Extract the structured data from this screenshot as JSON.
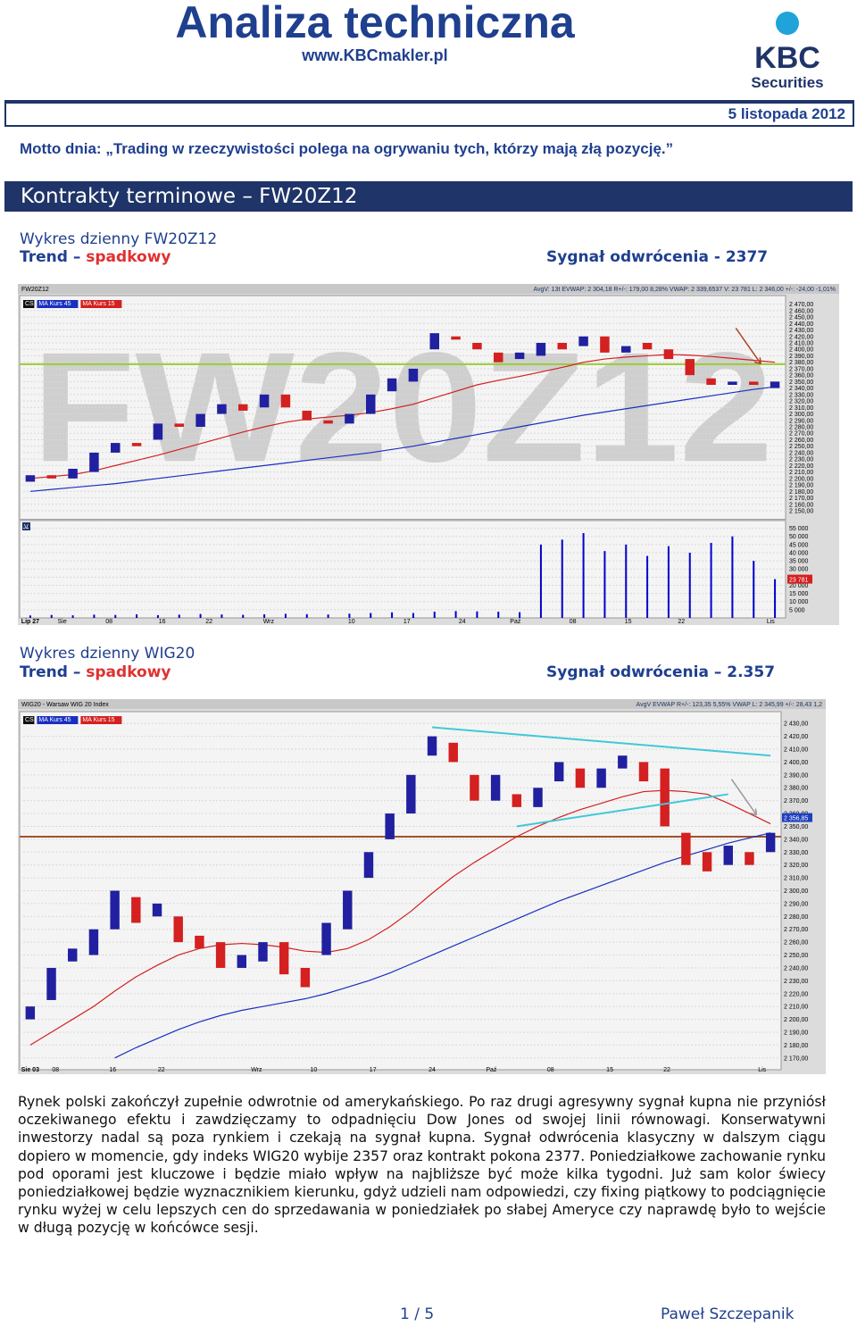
{
  "header": {
    "title": "Analiza techniczna",
    "url": "www.KBCmakler.pl",
    "logo": "KBC",
    "logo_sub": "Securities",
    "date": "5 listopada 2012"
  },
  "motto": {
    "label": "Motto dnia:",
    "text": "„Trading w rzeczywistości polega na ogrywaniu tych, którzy mają złą pozycję.”"
  },
  "section_title": "Kontrakty terminowe – FW20Z12",
  "captions": [
    {
      "title": "Wykres dzienny FW20Z12",
      "trend_label": "Trend –",
      "trend": "spadkowy",
      "signal": "Sygnał odwrócenia - 2377"
    },
    {
      "title": "Wykres dzienny WIG20",
      "trend_label": "Trend –",
      "trend": "spadkowy",
      "signal": "Sygnał odwrócenia – 2.357"
    }
  ],
  "chart_data": [
    {
      "type": "candlestick",
      "symbol": "FW20Z12",
      "watermark": "FW20Z12",
      "info": "AvgV: 13t  EVWAP: 2 304,18  R+/-: 179,00  8,28%  VWAP: 2 339,6537  V: 23 781  L: 2 346,00  +/-: -24,00  -1,01%",
      "candle_label": "CS",
      "ylim": [
        2145,
        2475
      ],
      "yticks": [
        {
          "value": 2470,
          "label": "2 470,00"
        },
        {
          "value": 2460,
          "label": "2 460,00"
        },
        {
          "value": 2450,
          "label": "2 450,00"
        },
        {
          "value": 2440,
          "label": "2 440,00"
        },
        {
          "value": 2430,
          "label": "2 430,00"
        },
        {
          "value": 2420,
          "label": "2 420,00"
        },
        {
          "value": 2410,
          "label": "2 410,00"
        },
        {
          "value": 2400,
          "label": "2 400,00"
        },
        {
          "value": 2390,
          "label": "2 390,00"
        },
        {
          "value": 2380,
          "label": "2 380,00"
        },
        {
          "value": 2370,
          "label": "2 370,00"
        },
        {
          "value": 2360,
          "label": "2 360,00"
        },
        {
          "value": 2350,
          "label": "2 350,00"
        },
        {
          "value": 2340,
          "label": "2 340,00"
        },
        {
          "value": 2330,
          "label": "2 330,00"
        },
        {
          "value": 2320,
          "label": "2 320,00"
        },
        {
          "value": 2310,
          "label": "2 310,00"
        },
        {
          "value": 2300,
          "label": "2 300,00"
        },
        {
          "value": 2290,
          "label": "2 290,00"
        },
        {
          "value": 2280,
          "label": "2 280,00"
        },
        {
          "value": 2270,
          "label": "2 270,00"
        },
        {
          "value": 2260,
          "label": "2 260,00"
        },
        {
          "value": 2250,
          "label": "2 250,00"
        },
        {
          "value": 2240,
          "label": "2 240,00"
        },
        {
          "value": 2230,
          "label": "2 230,00"
        },
        {
          "value": 2220,
          "label": "2 220,00"
        },
        {
          "value": 2210,
          "label": "2 210,00"
        },
        {
          "value": 2200,
          "label": "2 200,00"
        },
        {
          "value": 2190,
          "label": "2 190,00"
        },
        {
          "value": 2180,
          "label": "2 180,00"
        },
        {
          "value": 2170,
          "label": "2 170,00"
        },
        {
          "value": 2160,
          "label": "2 160,00"
        },
        {
          "value": 2150,
          "label": "2 150,00"
        }
      ],
      "xticks": [
        {
          "value": 0,
          "label": "Lip 27"
        },
        {
          "value": 1.5,
          "label": "Sie"
        },
        {
          "value": 3.7,
          "label": "08"
        },
        {
          "value": 6.2,
          "label": "16"
        },
        {
          "value": 8.4,
          "label": "22"
        },
        {
          "value": 11.2,
          "label": "Wrz"
        },
        {
          "value": 15.1,
          "label": "10"
        },
        {
          "value": 17.7,
          "label": "17"
        },
        {
          "value": 20.3,
          "label": "24"
        },
        {
          "value": 22.8,
          "label": "Paź"
        },
        {
          "value": 25.5,
          "label": "08"
        },
        {
          "value": 28.1,
          "label": "15"
        },
        {
          "value": 30.6,
          "label": "22"
        },
        {
          "value": 34.8,
          "label": "Lis"
        }
      ],
      "open": [
        2195,
        2205,
        2200,
        2210,
        2240,
        2255,
        2260,
        2285,
        2280,
        2300,
        2315,
        2310,
        2330,
        2305,
        2290,
        2285,
        2300,
        2335,
        2350,
        2400,
        2420,
        2410,
        2395,
        2385,
        2390,
        2410,
        2405,
        2420,
        2395,
        2410,
        2400,
        2385,
        2355,
        2345,
        2350,
        2340
      ],
      "close": [
        2205,
        2200,
        2215,
        2240,
        2255,
        2250,
        2285,
        2280,
        2300,
        2315,
        2305,
        2330,
        2310,
        2290,
        2285,
        2300,
        2330,
        2355,
        2370,
        2425,
        2415,
        2400,
        2380,
        2395,
        2410,
        2400,
        2420,
        2395,
        2405,
        2400,
        2385,
        2360,
        2345,
        2350,
        2345,
        2350
      ],
      "up_color": "#2020a0",
      "down_color": "#d42020",
      "ma": [
        {
          "name": "MA Kurs 45",
          "color": "#1a2fc0",
          "values": [
            2180,
            2183,
            2186,
            2189,
            2192,
            2196,
            2200,
            2204,
            2208,
            2212,
            2216,
            2220,
            2224,
            2228,
            2232,
            2236,
            2240,
            2245,
            2250,
            2256,
            2262,
            2268,
            2274,
            2280,
            2286,
            2292,
            2298,
            2303,
            2308,
            2313,
            2318,
            2323,
            2328,
            2333,
            2338,
            2342
          ]
        },
        {
          "name": "MA Kurs 15",
          "color": "#d42020",
          "values": [
            2200,
            2203,
            2206,
            2212,
            2220,
            2228,
            2236,
            2245,
            2254,
            2263,
            2272,
            2280,
            2287,
            2292,
            2295,
            2298,
            2302,
            2308,
            2315,
            2325,
            2335,
            2345,
            2352,
            2358,
            2365,
            2372,
            2380,
            2385,
            2388,
            2390,
            2392,
            2391,
            2389,
            2386,
            2383,
            2380
          ]
        }
      ],
      "hline": {
        "value": 2377,
        "color": "#9acd32"
      },
      "volume": {
        "label": "V",
        "color": "#0000cc",
        "ylim": [
          0,
          57500
        ],
        "yticks": [
          {
            "value": 55000,
            "label": "55 000"
          },
          {
            "value": 50000,
            "label": "50 000"
          },
          {
            "value": 45000,
            "label": "45 000"
          },
          {
            "value": 40000,
            "label": "40 000"
          },
          {
            "value": 35000,
            "label": "35 000"
          },
          {
            "value": 30000,
            "label": "30 000"
          },
          {
            "value": 25000,
            "label": "25 000"
          },
          {
            "value": 20000,
            "label": "20 000"
          },
          {
            "value": 15000,
            "label": "15 000"
          },
          {
            "value": 10000,
            "label": "10 000"
          },
          {
            "value": 5000,
            "label": "5 000"
          }
        ],
        "values": [
          1500,
          1800,
          1600,
          2000,
          1800,
          2200,
          1700,
          2000,
          2400,
          2100,
          1900,
          2200,
          2500,
          2300,
          2100,
          2600,
          3000,
          3400,
          3000,
          3800,
          4200,
          4000,
          3800,
          3500,
          45000,
          48000,
          52000,
          41000,
          45000,
          38000,
          44000,
          40000,
          46000,
          50000,
          35000,
          23781
        ],
        "last_label": {
          "value": 23781,
          "label": "23 781"
        }
      }
    },
    {
      "type": "candlestick",
      "symbol": "WIG20 - Warsaw WIG 20 Index",
      "info": "AvgV  EVWAP  R+/-: 123,35  5,55%  VWAP  L: 2 345,99  +/-: 28,43  1,2",
      "candle_label": "CS",
      "ylim": [
        2165,
        2435
      ],
      "yticks": [
        {
          "value": 2430,
          "label": "2 430,00"
        },
        {
          "value": 2420,
          "label": "2 420,00"
        },
        {
          "value": 2410,
          "label": "2 410,00"
        },
        {
          "value": 2400,
          "label": "2 400,00"
        },
        {
          "value": 2390,
          "label": "2 390,00"
        },
        {
          "value": 2380,
          "label": "2 380,00"
        },
        {
          "value": 2370,
          "label": "2 370,00"
        },
        {
          "value": 2360,
          "label": "2 360,00"
        },
        {
          "value": 2350,
          "label": "2 350,00"
        },
        {
          "value": 2340,
          "label": "2 340,00"
        },
        {
          "value": 2330,
          "label": "2 330,00"
        },
        {
          "value": 2320,
          "label": "2 320,00"
        },
        {
          "value": 2310,
          "label": "2 310,00"
        },
        {
          "value": 2300,
          "label": "2 300,00"
        },
        {
          "value": 2290,
          "label": "2 290,00"
        },
        {
          "value": 2280,
          "label": "2 280,00"
        },
        {
          "value": 2270,
          "label": "2 270,00"
        },
        {
          "value": 2260,
          "label": "2 260,00"
        },
        {
          "value": 2250,
          "label": "2 250,00"
        },
        {
          "value": 2240,
          "label": "2 240,00"
        },
        {
          "value": 2230,
          "label": "2 230,00"
        },
        {
          "value": 2220,
          "label": "2 220,00"
        },
        {
          "value": 2210,
          "label": "2 210,00"
        },
        {
          "value": 2200,
          "label": "2 200,00"
        },
        {
          "value": 2190,
          "label": "2 190,00"
        },
        {
          "value": 2180,
          "label": "2 180,00"
        },
        {
          "value": 2170,
          "label": "2 170,00"
        }
      ],
      "xticks": [
        {
          "value": 0,
          "label": "Sie 03"
        },
        {
          "value": 1.2,
          "label": "08"
        },
        {
          "value": 3.9,
          "label": "16"
        },
        {
          "value": 6.2,
          "label": "22"
        },
        {
          "value": 10.7,
          "label": "Wrz"
        },
        {
          "value": 13.4,
          "label": "10"
        },
        {
          "value": 16.2,
          "label": "17"
        },
        {
          "value": 19,
          "label": "24"
        },
        {
          "value": 21.8,
          "label": "Paź"
        },
        {
          "value": 24.6,
          "label": "08"
        },
        {
          "value": 27.4,
          "label": "15"
        },
        {
          "value": 30.1,
          "label": "22"
        },
        {
          "value": 34.6,
          "label": "Lis"
        }
      ],
      "open": [
        2200,
        2215,
        2245,
        2250,
        2270,
        2295,
        2280,
        2280,
        2265,
        2260,
        2240,
        2245,
        2260,
        2240,
        2250,
        2270,
        2310,
        2340,
        2360,
        2405,
        2415,
        2390,
        2370,
        2375,
        2365,
        2385,
        2395,
        2380,
        2395,
        2400,
        2395,
        2345,
        2330,
        2320,
        2330,
        2330
      ],
      "close": [
        2210,
        2240,
        2255,
        2270,
        2300,
        2275,
        2290,
        2260,
        2255,
        2240,
        2250,
        2260,
        2235,
        2225,
        2275,
        2300,
        2330,
        2360,
        2390,
        2420,
        2400,
        2370,
        2390,
        2365,
        2380,
        2400,
        2380,
        2395,
        2405,
        2385,
        2350,
        2320,
        2315,
        2335,
        2320,
        2345
      ],
      "up_color": "#2020a0",
      "down_color": "#d42020",
      "ma": [
        {
          "name": "MA Kurs 45",
          "color": "#1a2fc0",
          "values": [
            null,
            null,
            null,
            null,
            2170,
            2178,
            2185,
            2192,
            2198,
            2203,
            2207,
            2210,
            2213,
            2216,
            2220,
            2225,
            2230,
            2236,
            2243,
            2250,
            2257,
            2264,
            2271,
            2278,
            2285,
            2292,
            2298,
            2304,
            2310,
            2316,
            2322,
            2327,
            2332,
            2337,
            2341,
            2345
          ]
        },
        {
          "name": "MA Kurs 15",
          "color": "#d42020",
          "values": [
            2180,
            2190,
            2200,
            2210,
            2222,
            2233,
            2242,
            2250,
            2255,
            2258,
            2259,
            2258,
            2256,
            2253,
            2252,
            2255,
            2262,
            2272,
            2284,
            2298,
            2311,
            2322,
            2332,
            2342,
            2350,
            2357,
            2363,
            2368,
            2373,
            2377,
            2378,
            2377,
            2375,
            2368,
            2360,
            2352
          ]
        }
      ],
      "hline": {
        "value": 2342,
        "color": "#a0522d"
      },
      "trendlines": [
        {
          "x": [
            19,
            35
          ],
          "y": [
            2427,
            2405
          ]
        },
        {
          "x": [
            23,
            33
          ],
          "y": [
            2350,
            2375
          ]
        }
      ],
      "trendline_color": "#40c8d8",
      "last_label": {
        "value": 2356.85,
        "label": "2 356,85"
      }
    }
  ],
  "body": "Rynek polski zakończył zupełnie odwrotnie od amerykańskiego. Po raz drugi agresywny sygnał kupna nie przyniósł oczekiwanego efektu i zawdzięczamy to odpadnięciu Dow Jones od swojej linii równowagi. Konserwatywni inwestorzy nadal są poza rynkiem i  czekają na sygnał kupna. Sygnał odwrócenia klasyczny w dalszym ciągu dopiero w momencie, gdy indeks WIG20 wybije 2357 oraz kontrakt pokona 2377. Poniedziałkowe zachowanie rynku pod oporami jest kluczowe i będzie miało wpływ na najbliższe być może kilka tygodni. Już sam kolor świecy poniedziałkowej będzie wyznacznikiem kierunku, gdyż udzieli nam odpowiedzi, czy fixing piątkowy to podciągnięcie rynku wyżej w celu lepszych cen do sprzedawania w poniedziałek po słabej Ameryce czy naprawdę było to wejście w długą pozycję w końcówce sesji.",
  "footer": {
    "page": "1 / 5",
    "author": "Paweł Szczepanik"
  }
}
